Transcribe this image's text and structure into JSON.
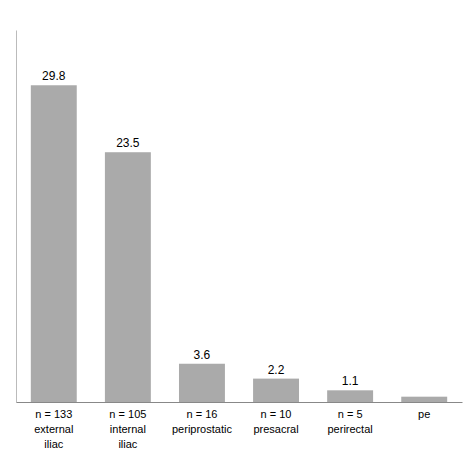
{
  "chart_data": {
    "type": "bar",
    "categories": [
      [
        "n = 133",
        "external",
        "iliac"
      ],
      [
        "n = 105",
        "internal",
        "iliac"
      ],
      [
        "n = 16",
        "periprostatic"
      ],
      [
        "n = 10",
        "presacral"
      ],
      [
        "n = 5",
        "perirectal"
      ],
      [
        "pe"
      ]
    ],
    "values": [
      29.8,
      23.5,
      3.6,
      2.2,
      1.1,
      0.5
    ],
    "value_labels": [
      "29.8",
      "23.5",
      "3.6",
      "2.2",
      "1.1",
      null
    ],
    "data_labels": true,
    "color": "#aaaaaa",
    "ylim": [
      0,
      35
    ],
    "tick_labels": "x",
    "grid": false
  }
}
